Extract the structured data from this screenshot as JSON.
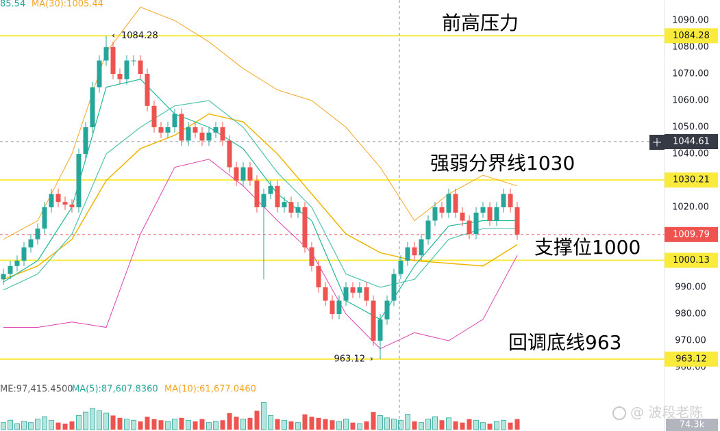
{
  "chart_data": {
    "type": "candlestick",
    "open": [
      993,
      995,
      998,
      1000,
      1005,
      1008,
      1012,
      1020,
      1025,
      1022,
      1021,
      1020,
      1040,
      1050,
      1065,
      1075,
      1080,
      1070,
      1068,
      1075,
      1075,
      1070,
      1058,
      1050,
      1048,
      1050,
      1055,
      1045,
      1050,
      1048,
      1045,
      1048,
      1050,
      1045,
      1035,
      1030,
      1035,
      1030,
      1020,
      1025,
      1028,
      1020,
      1022,
      1018,
      1020,
      1005,
      998,
      990,
      985,
      980,
      985,
      990,
      988,
      990,
      985,
      970,
      978,
      985,
      995,
      1000,
      1005,
      1002,
      1008,
      1015,
      1020,
      1018,
      1025,
      1018,
      1015,
      1010,
      1018,
      1020,
      1015,
      1020,
      1025,
      1020
    ],
    "high": [
      997,
      1000,
      1002,
      1007,
      1010,
      1014,
      1022,
      1027,
      1027,
      1024,
      1023,
      1042,
      1052,
      1067,
      1077,
      1084.28,
      1082,
      1072,
      1077,
      1077,
      1077,
      1072,
      1060,
      1052,
      1052,
      1057,
      1057,
      1052,
      1052,
      1050,
      1050,
      1052,
      1052,
      1047,
      1037,
      1037,
      1037,
      1032,
      1027,
      1030,
      1030,
      1024,
      1024,
      1022,
      1022,
      1007,
      1000,
      992,
      987,
      987,
      992,
      992,
      992,
      992,
      987,
      980,
      987,
      997,
      1002,
      1007,
      1007,
      1010,
      1017,
      1022,
      1022,
      1027,
      1027,
      1020,
      1017,
      1020,
      1022,
      1022,
      1022,
      1027,
      1027,
      1022
    ],
    "low": [
      991,
      993,
      996,
      998,
      1003,
      1006,
      1010,
      1018,
      1020,
      1019,
      1018,
      1018,
      1038,
      1048,
      1063,
      1073,
      1068,
      1066,
      1066,
      1073,
      1068,
      1056,
      1048,
      1046,
      1046,
      1048,
      1043,
      1043,
      1046,
      1043,
      1043,
      1046,
      1043,
      1033,
      1028,
      1028,
      1028,
      1018,
      993,
      1023,
      1018,
      1018,
      1016,
      1016,
      1003,
      996,
      988,
      983,
      978,
      978,
      983,
      986,
      986,
      983,
      968,
      963.12,
      976,
      983,
      993,
      998,
      1000,
      1000,
      1006,
      1013,
      1016,
      1016,
      1016,
      1013,
      1008,
      1008,
      1016,
      1013,
      1013,
      1018,
      1018,
      1007.79
    ],
    "close": [
      995,
      998,
      1000,
      1005,
      1008,
      1012,
      1020,
      1025,
      1022,
      1021,
      1020,
      1040,
      1050,
      1065,
      1075,
      1080,
      1070,
      1068,
      1075,
      1075,
      1070,
      1058,
      1050,
      1048,
      1050,
      1055,
      1045,
      1050,
      1048,
      1045,
      1048,
      1050,
      1045,
      1035,
      1030,
      1035,
      1030,
      1020,
      1025,
      1028,
      1020,
      1022,
      1018,
      1020,
      1005,
      998,
      990,
      985,
      980,
      985,
      990,
      988,
      990,
      985,
      970,
      978,
      985,
      995,
      1000,
      1005,
      1002,
      1008,
      1015,
      1020,
      1018,
      1025,
      1018,
      1015,
      1010,
      1018,
      1020,
      1015,
      1020,
      1025,
      1020,
      1009.79
    ],
    "up_color": "#26a69a",
    "down_color": "#ef5350",
    "ylim": [
      956.67,
      1097.69
    ],
    "yticks": [
      {
        "value": 960,
        "label": "960.00"
      },
      {
        "value": 970,
        "label": "970.00"
      },
      {
        "value": 980,
        "label": "980.00"
      },
      {
        "value": 990,
        "label": "990.00"
      },
      {
        "value": 1000,
        "label": "1000.00"
      },
      {
        "value": 1010,
        "label": "1010.00"
      },
      {
        "value": 1020,
        "label": "1020.00"
      },
      {
        "value": 1030,
        "label": "1030.00"
      },
      {
        "value": 1040,
        "label": "1040.00"
      },
      {
        "value": 1050,
        "label": "1050.00"
      },
      {
        "value": 1060,
        "label": "1060.00"
      },
      {
        "value": 1070,
        "label": "1070.00"
      },
      {
        "value": 1080,
        "label": "1080.00"
      },
      {
        "value": 1090,
        "label": "1090.00"
      }
    ],
    "indicators": [
      {
        "color": "#f5a623",
        "width": 1,
        "x": [
          0,
          5,
          10,
          15,
          20,
          25,
          30,
          35,
          40,
          45,
          50,
          55,
          60,
          65,
          70,
          75
        ],
        "values": [
          1008,
          1015,
          1040,
          1078,
          1095,
          1090,
          1082,
          1072,
          1064,
          1060,
          1050,
          1035,
          1015,
          1025,
          1032,
          1028
        ]
      },
      {
        "color": "#f0b400",
        "width": 1.5,
        "x": [
          0,
          5,
          10,
          15,
          20,
          25,
          30,
          35,
          40,
          45,
          50,
          55,
          60,
          65,
          70,
          75
        ],
        "values": [
          993,
          998,
          1008,
          1030,
          1042,
          1047,
          1055,
          1052,
          1040,
          1025,
          1010,
          1003,
          1000,
          999,
          998,
          1006
        ]
      },
      {
        "color": "#e040b0",
        "width": 1,
        "x": [
          0,
          5,
          10,
          15,
          20,
          25,
          30,
          35,
          40,
          45,
          50,
          55,
          60,
          65,
          70,
          75
        ],
        "values": [
          975,
          975,
          977,
          975,
          1010,
          1035,
          1038,
          1028,
          1015,
          1003,
          980,
          967,
          973,
          970,
          978,
          1002
        ]
      },
      {
        "color": "#1fb89a",
        "width": 1.2,
        "x": [
          0,
          5,
          10,
          15,
          20,
          25,
          30,
          35,
          40,
          45,
          50,
          55,
          60,
          65,
          70,
          75
        ],
        "values": [
          992,
          1000,
          1020,
          1065,
          1068,
          1055,
          1050,
          1042,
          1025,
          1015,
          985,
          978,
          998,
          1013,
          1015,
          1015
        ]
      },
      {
        "color": "#4fc3b0",
        "width": 1.2,
        "x": [
          0,
          5,
          10,
          15,
          20,
          25,
          30,
          35,
          40,
          45,
          50,
          55,
          60,
          65,
          70,
          75
        ],
        "values": [
          989,
          995,
          1010,
          1040,
          1050,
          1058,
          1060,
          1050,
          1033,
          1020,
          995,
          990,
          993,
          1008,
          1012,
          1012
        ]
      }
    ],
    "levels": [
      1084.28,
      1030.21,
      1000.13,
      963.12
    ],
    "level_color": "#f9ea3c",
    "last_price": 1009.79,
    "crosshair_price": 1044.61,
    "annotations": [
      "前高压力",
      "强弱分界线1030",
      "支撑位1000",
      "回调底线963"
    ],
    "annotation_color": "#e8352b",
    "legend_top": [
      "85.54",
      "MA(30):1005.44"
    ],
    "volume_legend": [
      "ME:97,415.4500",
      "MA(5):87,607.8360",
      "MA(10):61,677.0460"
    ],
    "volume": {
      "values": [
        60,
        80,
        50,
        70,
        60,
        90,
        110,
        80,
        60,
        50,
        70,
        120,
        150,
        180,
        160,
        140,
        120,
        100,
        90,
        80,
        70,
        110,
        90,
        80,
        70,
        90,
        100,
        80,
        70,
        90,
        60,
        70,
        80,
        140,
        110,
        90,
        100,
        160,
        230,
        120,
        90,
        80,
        70,
        60,
        130,
        110,
        100,
        90,
        80,
        70,
        90,
        60,
        50,
        70,
        150,
        120,
        100,
        90,
        80,
        130,
        70,
        60,
        90,
        110,
        80,
        100,
        70,
        60,
        90,
        80,
        60,
        50,
        70,
        80,
        60,
        90
      ],
      "ylim": [
        0,
        250
      ],
      "scale_label": "74.3k"
    },
    "watermark": "@ 波段老陈"
  }
}
